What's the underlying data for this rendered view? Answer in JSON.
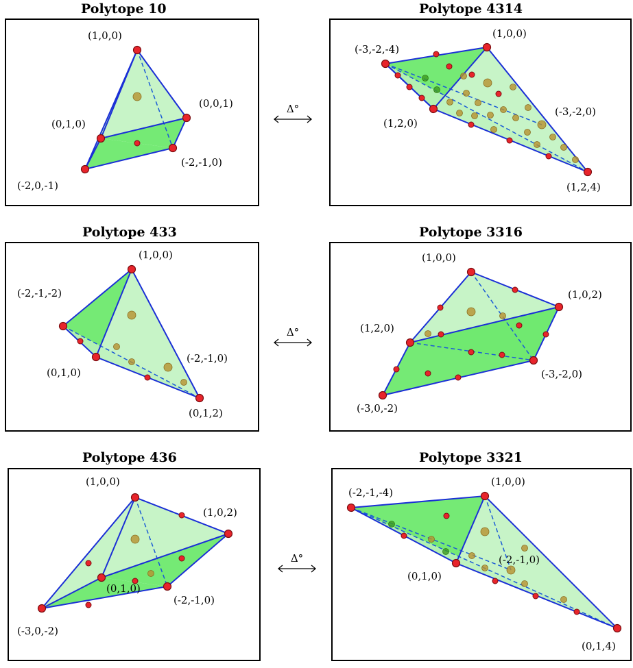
{
  "panels": {
    "p10": {
      "title": "Polytope 10",
      "labels": [
        "(1,0,0)",
        "(0,0,1)",
        "(0,1,0)",
        "(-2,-1,0)",
        "(-2,0,-1)"
      ]
    },
    "p4314": {
      "title": "Polytope 4314",
      "labels": [
        "(1,0,0)",
        "(-3,-2,-4)",
        "(-3,-2,0)",
        "(1,2,0)",
        "(1,2,4)"
      ]
    },
    "p433": {
      "title": "Polytope 433",
      "labels": [
        "(1,0,0)",
        "(-2,-1,-2)",
        "(-2,-1,0)",
        "(0,1,0)",
        "(0,1,2)"
      ]
    },
    "p3316": {
      "title": "Polytope 3316",
      "labels": [
        "(1,0,0)",
        "(1,0,2)",
        "(1,2,0)",
        "(-3,-2,0)",
        "(-3,0,-2)"
      ]
    },
    "p436": {
      "title": "Polytope 436",
      "labels": [
        "(1,0,0)",
        "(1,0,2)",
        "(-2,-1,0)",
        "(0,1,0)",
        "(-3,0,-2)"
      ]
    },
    "p3321": {
      "title": "Polytope 3321",
      "labels": [
        "(1,0,0)",
        "(-2,-1,-4)",
        "(-2,-1,0)",
        "(0,1,0)",
        "(0,1,4)"
      ]
    }
  },
  "arrow_label": "Δ°"
}
